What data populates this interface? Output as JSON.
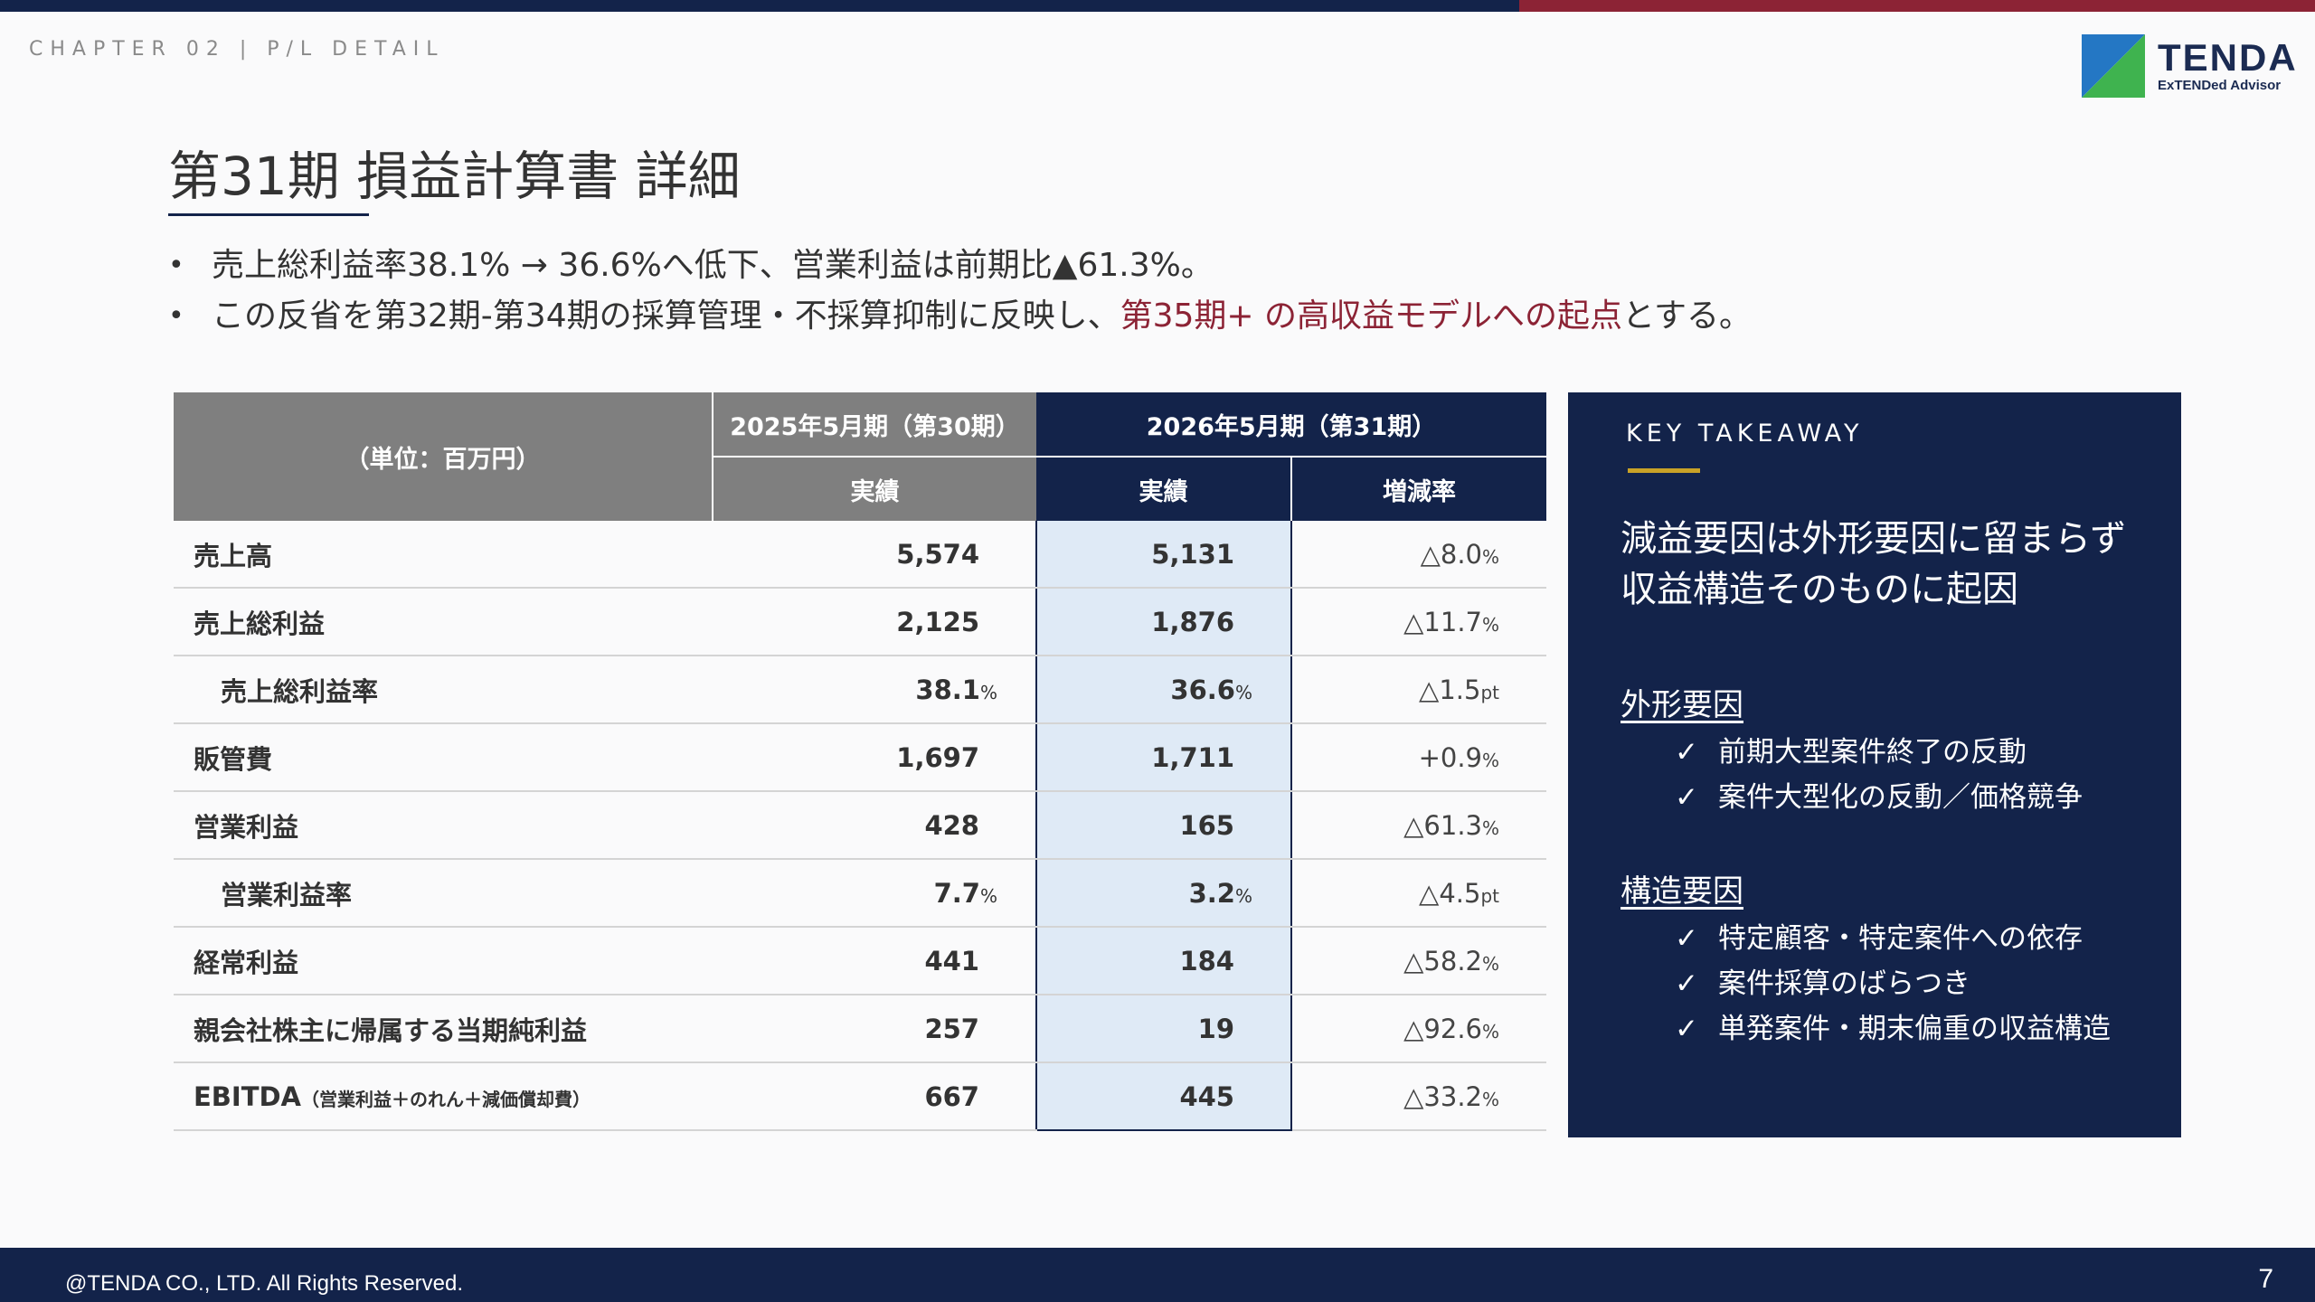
{
  "colors": {
    "navy": "#13234a",
    "accent_red": "#8c2335",
    "gold": "#c9a227",
    "highlight_col": "#dfeaf6",
    "header_gray": "#7f7f7f"
  },
  "header": {
    "chapter": "CHAPTER 02 | P/L DETAIL"
  },
  "logo": {
    "name": "TENDA",
    "tagline": "ExTENDed Advisor"
  },
  "title": "第31期 損益計算書 詳細",
  "bullets": [
    {
      "text": "売上総利益率38.1% → 36.6%へ低下、営業利益は前期比▲61.3%。"
    },
    {
      "pre": "この反省を第32期-第34期の採算管理・不採算抑制に反映し、",
      "highlight": "第35期+ の高収益モデルへの起点",
      "post": "とする。"
    }
  ],
  "table": {
    "unit_label": "（単位：百万円）",
    "prev_period": "2025年5月期（第30期）",
    "cur_period": "2026年5月期（第31期）",
    "col_actual": "実績",
    "col_change": "増減率",
    "rows": [
      {
        "label": "売上高",
        "prev": "5,574",
        "cur": "5,131",
        "chg": "△8.0",
        "chg_unit": "%"
      },
      {
        "label": "売上総利益",
        "prev": "2,125",
        "cur": "1,876",
        "chg": "△11.7",
        "chg_unit": "%"
      },
      {
        "label": "売上総利益率",
        "prev": "38.1",
        "prev_unit": "%",
        "cur": "36.6",
        "cur_unit": "%",
        "chg": "△1.5",
        "chg_unit": "pt"
      },
      {
        "label": "販管費",
        "prev": "1,697",
        "cur": "1,711",
        "chg": "+0.9",
        "chg_unit": "%"
      },
      {
        "label": "営業利益",
        "prev": "428",
        "cur": "165",
        "chg": "△61.3",
        "chg_unit": "%"
      },
      {
        "label": "営業利益率",
        "prev": "7.7",
        "prev_unit": "%",
        "cur": "3.2",
        "cur_unit": "%",
        "chg": "△4.5",
        "chg_unit": "pt"
      },
      {
        "label": "経常利益",
        "prev": "441",
        "cur": "184",
        "chg": "△58.2",
        "chg_unit": "%"
      },
      {
        "label": "親会社株主に帰属する当期純利益",
        "prev": "257",
        "cur": "19",
        "chg": "△92.6",
        "chg_unit": "%"
      },
      {
        "label": "EBITDA",
        "label_note": "（営業利益＋のれん＋減価償却費）",
        "prev": "667",
        "cur": "445",
        "chg": "△33.2",
        "chg_unit": "%"
      }
    ]
  },
  "takeaway": {
    "heading": "KEY TAKEAWAY",
    "headline_1": "減益要因は外形要因に留まらず",
    "headline_2": "収益構造そのものに起因",
    "check": "✓",
    "external": {
      "title": "外形要因",
      "items": [
        "前期大型案件終了の反動",
        "案件大型化の反動／価格競争"
      ]
    },
    "structural": {
      "title": "構造要因",
      "items": [
        "特定顧客・特定案件への依存",
        "案件採算のばらつき",
        "単発案件・期末偏重の収益構造"
      ]
    }
  },
  "footer": {
    "copyright": "@TENDA CO., LTD. All Rights Reserved.",
    "page": "7"
  }
}
